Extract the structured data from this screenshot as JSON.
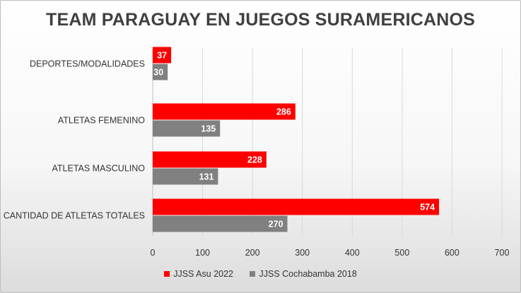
{
  "chart_data": {
    "type": "bar",
    "orientation": "horizontal",
    "title": "TEAM PARAGUAY EN JUEGOS SURAMERICANOS",
    "categories": [
      "DEPORTES/MODALIDADES",
      "ATLETAS FEMENINO",
      "ATLETAS MASCULINO",
      "CANTIDAD DE ATLETAS TOTALES"
    ],
    "series": [
      {
        "name": "JJSS Asu 2022",
        "color": "#ff0000",
        "values": [
          37,
          286,
          228,
          574
        ]
      },
      {
        "name": "JJSS Cochabamba 2018",
        "color": "#808080",
        "values": [
          30,
          135,
          131,
          270
        ]
      }
    ],
    "xlim": [
      0,
      700
    ],
    "xticks": [
      "0",
      "100",
      "200",
      "300",
      "400",
      "500",
      "600",
      "700"
    ],
    "xtick_values": [
      0,
      100,
      200,
      300,
      400,
      500,
      600,
      700
    ],
    "grid": true,
    "legend": "bottom"
  }
}
